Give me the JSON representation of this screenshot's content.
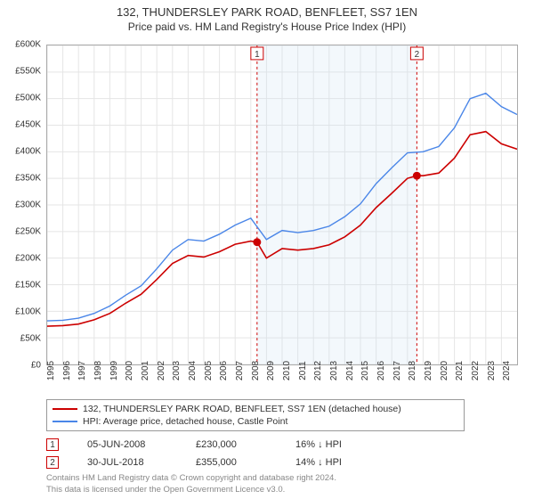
{
  "title": {
    "line1": "132, THUNDERSLEY PARK ROAD, BENFLEET, SS7 1EN",
    "line2": "Price paid vs. HM Land Registry's House Price Index (HPI)"
  },
  "chart": {
    "type": "line",
    "background_color": "#ffffff",
    "grid_color": "#e5e5e5",
    "border_color": "#aaaaaa",
    "ylim": [
      0,
      600000
    ],
    "ytick_step": 50000,
    "ytick_labels": [
      "£0",
      "£50K",
      "£100K",
      "£150K",
      "£200K",
      "£250K",
      "£300K",
      "£350K",
      "£400K",
      "£450K",
      "£500K",
      "£550K",
      "£600K"
    ],
    "xlim": [
      1995,
      2025
    ],
    "xticks": [
      1995,
      1996,
      1997,
      1998,
      1999,
      2000,
      2001,
      2002,
      2003,
      2004,
      2005,
      2006,
      2007,
      2008,
      2009,
      2010,
      2011,
      2012,
      2013,
      2014,
      2015,
      2016,
      2017,
      2018,
      2019,
      2020,
      2021,
      2022,
      2023,
      2024
    ],
    "shaded_band": {
      "from": 2008.4,
      "to": 2018.6,
      "color": "#cfe2f3"
    },
    "series": [
      {
        "name": "property",
        "label": "132, THUNDERSLEY PARK ROAD, BENFLEET, SS7 1EN (detached house)",
        "color": "#cc0000",
        "line_width": 1.6,
        "points": [
          [
            1995,
            72000
          ],
          [
            1996,
            73000
          ],
          [
            1997,
            76000
          ],
          [
            1998,
            84000
          ],
          [
            1999,
            96000
          ],
          [
            2000,
            115000
          ],
          [
            2001,
            132000
          ],
          [
            2002,
            160000
          ],
          [
            2003,
            190000
          ],
          [
            2004,
            205000
          ],
          [
            2005,
            202000
          ],
          [
            2006,
            212000
          ],
          [
            2007,
            226000
          ],
          [
            2008,
            232000
          ],
          [
            2008.4,
            230000
          ],
          [
            2009,
            200000
          ],
          [
            2010,
            218000
          ],
          [
            2011,
            215000
          ],
          [
            2012,
            218000
          ],
          [
            2013,
            225000
          ],
          [
            2014,
            240000
          ],
          [
            2015,
            262000
          ],
          [
            2016,
            295000
          ],
          [
            2017,
            322000
          ],
          [
            2018,
            350000
          ],
          [
            2018.6,
            355000
          ],
          [
            2019,
            355000
          ],
          [
            2020,
            360000
          ],
          [
            2021,
            388000
          ],
          [
            2022,
            432000
          ],
          [
            2023,
            438000
          ],
          [
            2024,
            415000
          ],
          [
            2025,
            405000
          ]
        ]
      },
      {
        "name": "hpi",
        "label": "HPI: Average price, detached house, Castle Point",
        "color": "#4a86e8",
        "line_width": 1.4,
        "points": [
          [
            1995,
            82000
          ],
          [
            1996,
            83000
          ],
          [
            1997,
            87000
          ],
          [
            1998,
            96000
          ],
          [
            1999,
            110000
          ],
          [
            2000,
            130000
          ],
          [
            2001,
            148000
          ],
          [
            2002,
            180000
          ],
          [
            2003,
            215000
          ],
          [
            2004,
            235000
          ],
          [
            2005,
            232000
          ],
          [
            2006,
            245000
          ],
          [
            2007,
            262000
          ],
          [
            2008,
            275000
          ],
          [
            2009,
            235000
          ],
          [
            2010,
            252000
          ],
          [
            2011,
            248000
          ],
          [
            2012,
            252000
          ],
          [
            2013,
            260000
          ],
          [
            2014,
            278000
          ],
          [
            2015,
            302000
          ],
          [
            2016,
            340000
          ],
          [
            2017,
            370000
          ],
          [
            2018,
            398000
          ],
          [
            2019,
            400000
          ],
          [
            2020,
            410000
          ],
          [
            2021,
            445000
          ],
          [
            2022,
            500000
          ],
          [
            2023,
            510000
          ],
          [
            2024,
            485000
          ],
          [
            2025,
            470000
          ]
        ]
      }
    ],
    "sale_markers": [
      {
        "n": "1",
        "x": 2008.4,
        "y": 230000,
        "color": "#cc0000"
      },
      {
        "n": "2",
        "x": 2018.6,
        "y": 355000,
        "color": "#cc0000"
      }
    ],
    "label_fontsize": 10,
    "title_fontsize": 13
  },
  "sales": [
    {
      "n": "1",
      "date": "05-JUN-2008",
      "price": "£230,000",
      "vs_hpi": "16% ↓ HPI",
      "color": "#cc0000"
    },
    {
      "n": "2",
      "date": "30-JUL-2018",
      "price": "£355,000",
      "vs_hpi": "14% ↓ HPI",
      "color": "#cc0000"
    }
  ],
  "legend": {
    "series_1": {
      "color": "#cc0000",
      "label": "132, THUNDERSLEY PARK ROAD, BENFLEET, SS7 1EN (detached house)"
    },
    "series_2": {
      "color": "#4a86e8",
      "label": "HPI: Average price, detached house, Castle Point"
    }
  },
  "footnote": {
    "line1": "Contains HM Land Registry data © Crown copyright and database right 2024.",
    "line2": "This data is licensed under the Open Government Licence v3.0."
  }
}
